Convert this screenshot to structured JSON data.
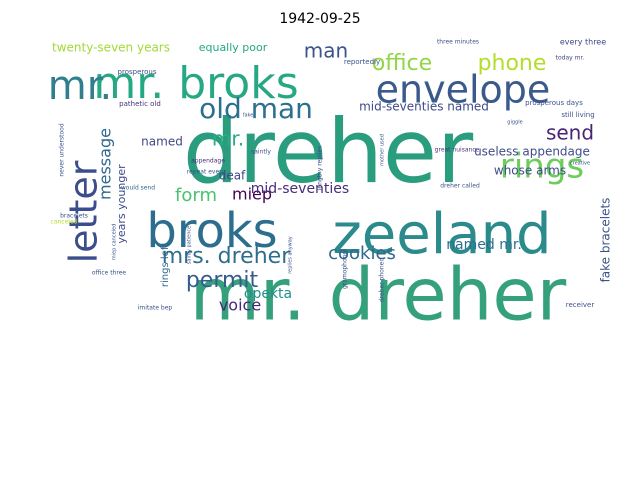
{
  "chart_data": {
    "type": "wordcloud",
    "title": "1942-09-25",
    "background": "#ffffff",
    "words": [
      {
        "text": "dreher",
        "color": "#2a9d7f",
        "orient": "h"
      },
      {
        "text": "mr. dreher",
        "color": "#35a07c",
        "orient": "h"
      },
      {
        "text": "zeeland",
        "color": "#2b8a8c",
        "orient": "h"
      },
      {
        "text": "broks",
        "color": "#2c6e8e",
        "orient": "h"
      },
      {
        "text": "envelope",
        "color": "#3a5a8c",
        "orient": "h"
      },
      {
        "text": "mr. broks",
        "color": "#26a883",
        "orient": "h"
      },
      {
        "text": "letter",
        "color": "#3b4d8c",
        "orient": "v"
      },
      {
        "text": "mr.",
        "color": "#2f7f8e",
        "orient": "h"
      },
      {
        "text": "old man",
        "color": "#2c6f8e",
        "orient": "h"
      },
      {
        "text": "rings",
        "color": "#6ccd5a",
        "orient": "h"
      },
      {
        "text": "mrs. dreher",
        "color": "#2f6d8e",
        "orient": "h"
      },
      {
        "text": "office",
        "color": "#8fd744",
        "orient": "h"
      },
      {
        "text": "phone",
        "color": "#b5de2b",
        "orient": "h"
      },
      {
        "text": "message",
        "color": "#31688e",
        "orient": "v"
      },
      {
        "text": "form",
        "color": "#4ac16d",
        "orient": "h"
      },
      {
        "text": "permit",
        "color": "#365c8d",
        "orient": "h"
      },
      {
        "text": "send",
        "color": "#482475",
        "orient": "h"
      },
      {
        "text": "man",
        "color": "#3b528b",
        "orient": "h"
      },
      {
        "text": "mr.",
        "color": "#27ad81",
        "orient": "h"
      },
      {
        "text": "cookies",
        "color": "#31688e",
        "orient": "h"
      },
      {
        "text": "miep",
        "color": "#440154",
        "orient": "h"
      },
      {
        "text": "voice",
        "color": "#482878",
        "orient": "h"
      },
      {
        "text": "opekta",
        "color": "#21918c",
        "orient": "h"
      },
      {
        "text": "mid-seventies",
        "color": "#472d7b",
        "orient": "h"
      },
      {
        "text": "mid-seventies named",
        "color": "#3e4989",
        "orient": "h"
      },
      {
        "text": "named",
        "color": "#3e4a89",
        "orient": "h"
      },
      {
        "text": "named mr.",
        "color": "#2e6e8e",
        "orient": "h"
      },
      {
        "text": "deaf",
        "color": "#3f4788",
        "orient": "h"
      },
      {
        "text": "useless appendage",
        "color": "#3e4c8a",
        "orient": "h"
      },
      {
        "text": "whose arms",
        "color": "#3d4e8a",
        "orient": "h"
      },
      {
        "text": "twenty-seven years",
        "color": "#a2da37",
        "orient": "h"
      },
      {
        "text": "equally poor",
        "color": "#22a785",
        "orient": "h"
      },
      {
        "text": "years younger",
        "color": "#3e4a89",
        "orient": "v"
      },
      {
        "text": "rings left",
        "color": "#31688e",
        "orient": "v"
      },
      {
        "text": "fake bracelets",
        "color": "#3b528b",
        "orient": "v"
      },
      {
        "text": "reportedly",
        "color": "#3b528b",
        "orient": "h"
      },
      {
        "text": "three minutes",
        "color": "#3b528b",
        "orient": "h"
      },
      {
        "text": "every three",
        "color": "#3e4989",
        "orient": "h"
      },
      {
        "text": "today mr.",
        "color": "#3e4989",
        "orient": "h"
      },
      {
        "text": "prosperous",
        "color": "#3b528b",
        "orient": "h"
      },
      {
        "text": "prosperous days",
        "color": "#3b528b",
        "orient": "h"
      },
      {
        "text": "still living",
        "color": "#3b528b",
        "orient": "h"
      },
      {
        "text": "pathetic old",
        "color": "#46337e",
        "orient": "h"
      },
      {
        "text": "never understood",
        "color": "#3b528b",
        "orient": "v"
      },
      {
        "text": "would send",
        "color": "#31688e",
        "orient": "h"
      },
      {
        "text": "office three",
        "color": "#3b528b",
        "orient": "h"
      },
      {
        "text": "imitate bep",
        "color": "#3b528b",
        "orient": "h"
      },
      {
        "text": "great nuisance",
        "color": "#46337e",
        "orient": "h"
      },
      {
        "text": "dreher called",
        "color": "#3b528b",
        "orient": "h"
      },
      {
        "text": "receiver",
        "color": "#3b528b",
        "orient": "h"
      },
      {
        "text": "appendage",
        "color": "#472d7b",
        "orient": "h"
      },
      {
        "text": "repeat every",
        "color": "#3b528b",
        "orient": "h"
      },
      {
        "text": "saintly",
        "color": "#3b528b",
        "orient": "h"
      },
      {
        "text": "sainty patience",
        "color": "#3b528b",
        "orient": "v"
      },
      {
        "text": "lengthy replies",
        "color": "#3e4989",
        "orient": "v"
      },
      {
        "text": "replies anyway",
        "color": "#3b528b",
        "orient": "v"
      },
      {
        "text": "mother used",
        "color": "#3b528b",
        "orient": "v"
      },
      {
        "text": "gramophone",
        "color": "#3b528b",
        "orient": "v"
      },
      {
        "text": "dreher phoned",
        "color": "#3b528b",
        "orient": "v"
      },
      {
        "text": "bracelets",
        "color": "#3b528b",
        "orient": "h"
      },
      {
        "text": "fake",
        "color": "#3b528b",
        "orient": "h"
      },
      {
        "text": "canceled",
        "color": "#b8de29",
        "orient": "h"
      },
      {
        "text": "miep canceled",
        "color": "#3b528b",
        "orient": "v"
      },
      {
        "text": "giggle",
        "color": "#3b528b",
        "orient": "h"
      },
      {
        "text": "creative",
        "color": "#3b528b",
        "orient": "h"
      }
    ]
  }
}
